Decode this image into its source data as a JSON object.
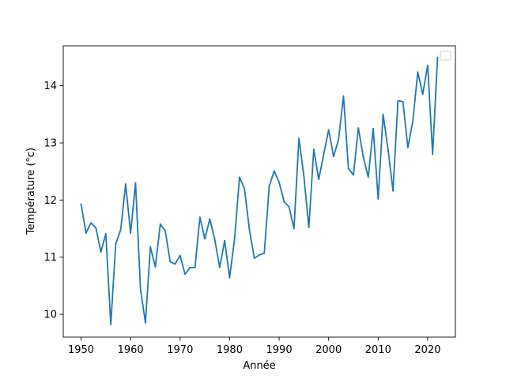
{
  "chart_data": {
    "type": "line",
    "title": "",
    "xlabel": "Année",
    "ylabel": "Température (°c)",
    "xlim": [
      1946.4,
      2025.6
    ],
    "ylim": [
      9.6,
      14.7
    ],
    "xticks": [
      1950,
      1960,
      1970,
      1980,
      1990,
      2000,
      2010,
      2020
    ],
    "yticks": [
      10,
      11,
      12,
      13,
      14
    ],
    "grid": false,
    "legend": {
      "position": "top-right",
      "entries": []
    },
    "series": [
      {
        "color": "#1f77b4",
        "x": [
          1950,
          1951,
          1952,
          1953,
          1954,
          1955,
          1956,
          1957,
          1958,
          1959,
          1960,
          1961,
          1962,
          1963,
          1964,
          1965,
          1966,
          1967,
          1968,
          1969,
          1970,
          1971,
          1972,
          1973,
          1974,
          1975,
          1976,
          1977,
          1978,
          1979,
          1980,
          1981,
          1982,
          1983,
          1984,
          1985,
          1986,
          1987,
          1988,
          1989,
          1990,
          1991,
          1992,
          1993,
          1994,
          1995,
          1996,
          1997,
          1998,
          1999,
          2000,
          2001,
          2002,
          2003,
          2004,
          2005,
          2006,
          2007,
          2008,
          2009,
          2010,
          2011,
          2012,
          2013,
          2014,
          2015,
          2016,
          2017,
          2018,
          2019,
          2020,
          2021,
          2022
        ],
        "y": [
          11.93,
          11.42,
          11.6,
          11.51,
          11.09,
          11.41,
          9.82,
          11.23,
          11.48,
          12.28,
          11.42,
          12.3,
          10.44,
          9.85,
          11.18,
          10.83,
          11.58,
          11.46,
          10.92,
          10.88,
          11.03,
          10.7,
          10.82,
          10.82,
          11.7,
          11.32,
          11.67,
          11.31,
          10.82,
          11.29,
          10.64,
          11.32,
          12.4,
          12.2,
          11.48,
          10.98,
          11.04,
          11.07,
          12.24,
          12.51,
          12.31,
          11.97,
          11.88,
          11.5,
          13.08,
          12.42,
          11.52,
          12.89,
          12.36,
          12.8,
          13.23,
          12.76,
          13.06,
          13.82,
          12.55,
          12.44,
          13.26,
          12.75,
          12.4,
          13.25,
          12.02,
          13.5,
          12.88,
          12.16,
          13.74,
          13.72,
          12.92,
          13.38,
          14.24,
          13.85,
          14.36,
          12.8,
          14.5
        ]
      }
    ]
  }
}
